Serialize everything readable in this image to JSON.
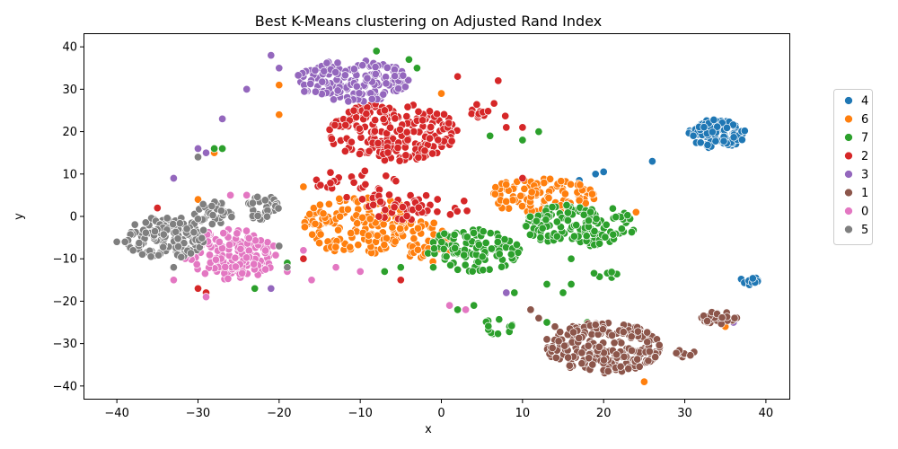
{
  "chart_data": {
    "type": "scatter",
    "title": "Best K-Means clustering on Adjusted Rand Index",
    "xlabel": "x",
    "ylabel": "y",
    "xlim": [
      -44,
      43
    ],
    "ylim": [
      -43,
      43
    ],
    "xticks": [
      -40,
      -30,
      -20,
      -10,
      0,
      10,
      20,
      30,
      40
    ],
    "yticks": [
      -40,
      -30,
      -20,
      -10,
      0,
      10,
      20,
      30,
      40
    ],
    "grid": false,
    "legend_position": "right",
    "series": [
      {
        "name": "4",
        "color": "#1f77b4",
        "clusters": [
          {
            "cx": 34,
            "cy": 19.5,
            "rx": 3.5,
            "ry": 3.5,
            "n": 110
          },
          {
            "cx": 38,
            "cy": -15,
            "rx": 1.2,
            "ry": 1.2,
            "n": 14
          }
        ],
        "points": [
          [
            19,
            10
          ],
          [
            20,
            10.5
          ],
          [
            17,
            8.5
          ],
          [
            26,
            13
          ],
          [
            15,
            2
          ],
          [
            16,
            2
          ]
        ]
      },
      {
        "name": "6",
        "color": "#ff7f0e",
        "clusters": [
          {
            "cx": -10,
            "cy": -2,
            "rx": 7,
            "ry": 7,
            "n": 150
          },
          {
            "cx": 12,
            "cy": 5,
            "rx": 7,
            "ry": 4,
            "n": 110
          },
          {
            "cx": -2,
            "cy": -6,
            "rx": 4,
            "ry": 5,
            "n": 40
          }
        ],
        "points": [
          [
            -28,
            15
          ],
          [
            -29,
            15
          ],
          [
            -20,
            24
          ],
          [
            -20,
            31
          ],
          [
            0,
            29
          ],
          [
            25,
            -39
          ],
          [
            35,
            -26
          ],
          [
            -17,
            7
          ],
          [
            -30,
            4
          ],
          [
            24,
            1
          ]
        ]
      },
      {
        "name": "7",
        "color": "#2ca02c",
        "clusters": [
          {
            "cx": 17,
            "cy": -2,
            "rx": 7,
            "ry": 5,
            "n": 140
          },
          {
            "cx": 4,
            "cy": -8,
            "rx": 6,
            "ry": 5,
            "n": 110
          },
          {
            "cx": 20,
            "cy": -14,
            "rx": 2,
            "ry": 1,
            "n": 8
          },
          {
            "cx": 7,
            "cy": -26,
            "rx": 2,
            "ry": 2,
            "n": 12
          }
        ],
        "points": [
          [
            -27,
            16
          ],
          [
            -28,
            16
          ],
          [
            -8,
            39
          ],
          [
            -4,
            37
          ],
          [
            -3,
            35
          ],
          [
            -23,
            -17
          ],
          [
            6,
            19
          ],
          [
            10,
            18
          ],
          [
            12,
            20
          ],
          [
            13,
            -25
          ],
          [
            13,
            -16
          ],
          [
            15,
            -18
          ],
          [
            16,
            -16
          ],
          [
            2,
            -22
          ],
          [
            4,
            -21
          ],
          [
            -19,
            -11
          ],
          [
            18,
            -25
          ],
          [
            -1,
            -12
          ],
          [
            -5,
            -12
          ],
          [
            -7,
            -13
          ],
          [
            16,
            -10
          ],
          [
            9,
            -18
          ]
        ]
      },
      {
        "name": "2",
        "color": "#d62728",
        "clusters": [
          {
            "cx": -6,
            "cy": 20,
            "rx": 8,
            "ry": 7,
            "n": 220
          },
          {
            "cx": -10,
            "cy": 8,
            "rx": 6,
            "ry": 4,
            "n": 30
          },
          {
            "cx": -3,
            "cy": 2,
            "rx": 7,
            "ry": 3,
            "n": 40
          },
          {
            "cx": 6,
            "cy": 25,
            "rx": 3,
            "ry": 2,
            "n": 12
          }
        ],
        "points": [
          [
            -27,
            -12
          ],
          [
            -26,
            -12
          ],
          [
            -30,
            -17
          ],
          [
            -35,
            2
          ],
          [
            -29,
            -18
          ],
          [
            2,
            33
          ],
          [
            7,
            32
          ],
          [
            8,
            21
          ],
          [
            10,
            21
          ],
          [
            10,
            9
          ],
          [
            -5,
            -15
          ],
          [
            -17,
            -10
          ],
          [
            -25,
            -9
          ],
          [
            -27,
            -10
          ]
        ]
      },
      {
        "name": "3",
        "color": "#9467bd",
        "clusters": [
          {
            "cx": -11,
            "cy": 32,
            "rx": 7,
            "ry": 5,
            "n": 170
          }
        ],
        "points": [
          [
            -30,
            16
          ],
          [
            -29,
            15
          ],
          [
            -33,
            9
          ],
          [
            -27,
            23
          ],
          [
            -24,
            30
          ],
          [
            -21,
            38
          ],
          [
            -20,
            35
          ],
          [
            -21,
            -17
          ],
          [
            8,
            -18
          ],
          [
            36,
            -25
          ],
          [
            -30,
            16
          ]
        ]
      },
      {
        "name": "1",
        "color": "#8c564b",
        "clusters": [
          {
            "cx": 20,
            "cy": -31,
            "rx": 7,
            "ry": 6,
            "n": 230
          },
          {
            "cx": 34,
            "cy": -24,
            "rx": 2.5,
            "ry": 1.5,
            "n": 30
          },
          {
            "cx": 30,
            "cy": -32,
            "rx": 1.5,
            "ry": 1.5,
            "n": 10
          }
        ],
        "points": [
          [
            13,
            -29
          ],
          [
            14,
            -26
          ],
          [
            12,
            -24
          ],
          [
            11,
            -22
          ]
        ]
      },
      {
        "name": "0",
        "color": "#e377c2",
        "clusters": [
          {
            "cx": -26,
            "cy": -9,
            "rx": 6,
            "ry": 6,
            "n": 150
          }
        ],
        "points": [
          [
            -19,
            -13
          ],
          [
            -16,
            -15
          ],
          [
            -17,
            -8
          ],
          [
            -33,
            -15
          ],
          [
            -29,
            -19
          ],
          [
            -13,
            -12
          ],
          [
            -24,
            5
          ],
          [
            -26,
            5
          ],
          [
            1,
            -21
          ],
          [
            3,
            -22
          ],
          [
            -30,
            -1
          ],
          [
            -10,
            -13
          ]
        ]
      },
      {
        "name": "5",
        "color": "#7f7f7f",
        "clusters": [
          {
            "cx": -34,
            "cy": -5,
            "rx": 5,
            "ry": 5,
            "n": 140
          },
          {
            "cx": -28,
            "cy": 1,
            "rx": 2.5,
            "ry": 3,
            "n": 30
          },
          {
            "cx": -22,
            "cy": 2,
            "rx": 2,
            "ry": 3,
            "n": 30
          }
        ],
        "points": [
          [
            -38,
            -8
          ],
          [
            -39,
            -6
          ],
          [
            -40,
            -6
          ],
          [
            -33,
            -12
          ],
          [
            -19,
            -12
          ],
          [
            -20,
            -7
          ],
          [
            -30,
            14
          ]
        ]
      }
    ]
  }
}
